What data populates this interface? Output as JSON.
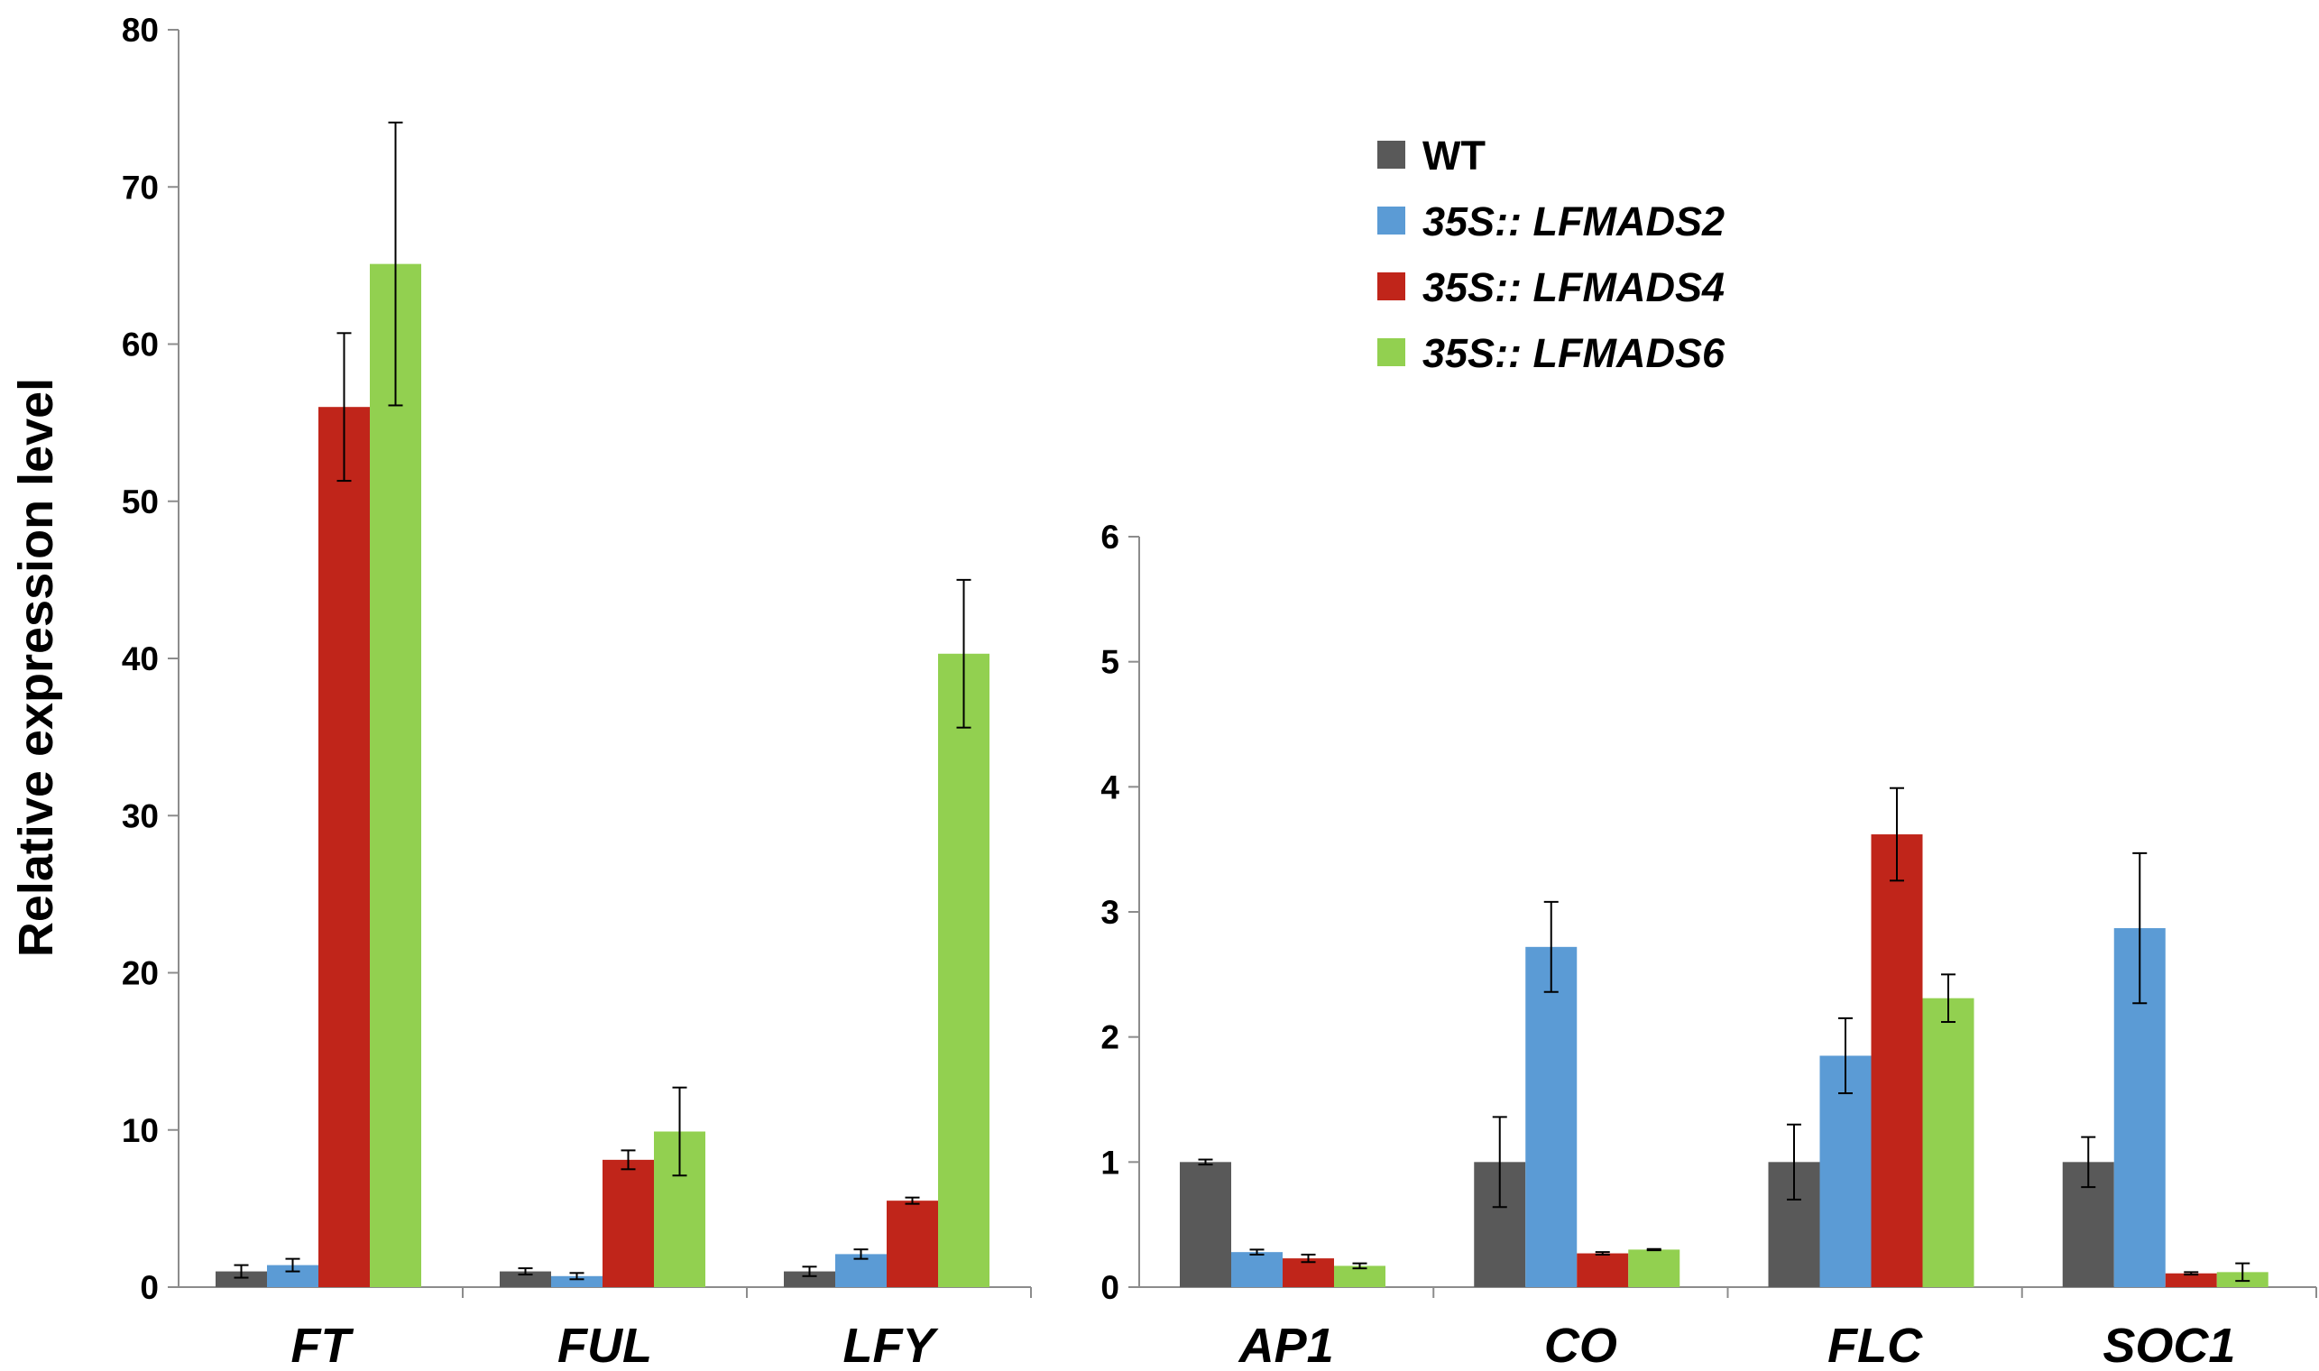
{
  "chart_data": [
    {
      "type": "bar",
      "ylabel": "Relative expression level",
      "ylim": [
        0,
        80
      ],
      "yticks": [
        0,
        10,
        20,
        30,
        40,
        50,
        60,
        70,
        80
      ],
      "categories": [
        "FT",
        "FUL",
        "LFY"
      ],
      "series": [
        {
          "name": "WT",
          "color": "#595959",
          "values": [
            1.0,
            1.0,
            1.0
          ],
          "errors": [
            0.4,
            0.2,
            0.3
          ]
        },
        {
          "name": "35S:: LFMADS2",
          "color": "#5b9bd5",
          "values": [
            1.4,
            0.7,
            2.1
          ],
          "errors": [
            0.4,
            0.2,
            0.3
          ]
        },
        {
          "name": "35S:: LFMADS4",
          "color": "#c0251a",
          "values": [
            56.0,
            8.1,
            5.5
          ],
          "errors": [
            4.7,
            0.6,
            0.2
          ]
        },
        {
          "name": "35S:: LFMADS6",
          "color": "#92d050",
          "values": [
            65.1,
            9.9,
            40.3
          ],
          "errors": [
            9.0,
            2.8,
            4.7
          ]
        }
      ]
    },
    {
      "type": "bar",
      "ylim": [
        0,
        6
      ],
      "yticks": [
        0,
        1,
        2,
        3,
        4,
        5,
        6
      ],
      "categories": [
        "AP1",
        "CO",
        "FLC",
        "SOC1"
      ],
      "series": [
        {
          "name": "WT",
          "color": "#595959",
          "values": [
            1.0,
            1.0,
            1.0,
            1.0
          ],
          "errors": [
            0.02,
            0.36,
            0.3,
            0.2
          ]
        },
        {
          "name": "35S:: LFMADS2",
          "color": "#5b9bd5",
          "values": [
            0.28,
            2.72,
            1.85,
            2.87
          ],
          "errors": [
            0.02,
            0.36,
            0.3,
            0.6
          ]
        },
        {
          "name": "35S:: LFMADS4",
          "color": "#c0251a",
          "values": [
            0.23,
            0.27,
            3.62,
            0.11
          ],
          "errors": [
            0.03,
            0.01,
            0.37,
            0.01
          ]
        },
        {
          "name": "35S:: LFMADS6",
          "color": "#92d050",
          "values": [
            0.17,
            0.3,
            2.31,
            0.12
          ],
          "errors": [
            0.02,
            0.005,
            0.19,
            0.07
          ]
        }
      ]
    }
  ],
  "legend": {
    "items": [
      {
        "label": "WT",
        "color": "#595959",
        "italic": false
      },
      {
        "label": "35S:: LFMADS2",
        "color": "#5b9bd5",
        "italic": true
      },
      {
        "label": "35S:: LFMADS4",
        "color": "#c0251a",
        "italic": true
      },
      {
        "label": "35S:: LFMADS6",
        "color": "#92d050",
        "italic": true
      }
    ]
  }
}
